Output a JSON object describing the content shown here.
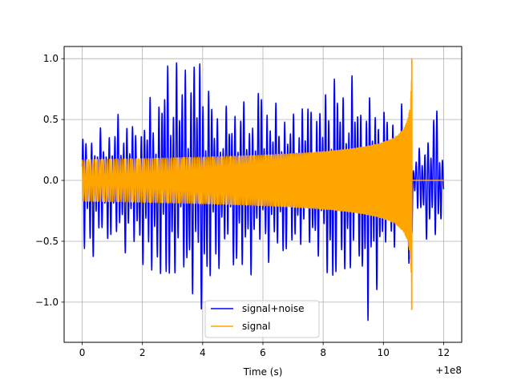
{
  "chart_data": {
    "type": "line",
    "title": "",
    "xlabel": "Time (s)",
    "ylabel": "",
    "x_offset_label": "+1e8",
    "xlim": [
      -0.6,
      12.6
    ],
    "ylim": [
      -1.33,
      1.1
    ],
    "x_ticks": [
      0,
      2,
      4,
      6,
      8,
      10,
      12
    ],
    "x_tick_labels": [
      "0",
      "2",
      "4",
      "6",
      "8",
      "10",
      "12"
    ],
    "y_ticks": [
      -1.0,
      -0.5,
      0.0,
      0.5,
      1.0
    ],
    "y_tick_labels": [
      "−1.0",
      "−0.5",
      "0.0",
      "0.5",
      "1.0"
    ],
    "grid": true,
    "legend_position": "bottom-center",
    "series": [
      {
        "name": "signal+noise",
        "color": "#0000ff",
        "x_start": 0.0,
        "x_end": 12.0,
        "merger_time": 10.95,
        "peak_envelope_y": [
          [
            0.0,
            0.32
          ],
          [
            0.5,
            0.35
          ],
          [
            0.55,
            0.38
          ],
          [
            0.75,
            0.34
          ],
          [
            1.0,
            0.42
          ],
          [
            1.2,
            0.48
          ],
          [
            1.4,
            0.45
          ],
          [
            1.5,
            0.5
          ],
          [
            1.8,
            0.38
          ],
          [
            2.0,
            0.45
          ],
          [
            2.2,
            0.63
          ],
          [
            2.4,
            0.56
          ],
          [
            2.6,
            0.65
          ],
          [
            2.7,
            0.93
          ],
          [
            2.9,
            0.85
          ],
          [
            3.1,
            0.97
          ],
          [
            3.3,
            0.75
          ],
          [
            3.4,
            1.0
          ],
          [
            3.6,
            0.88
          ],
          [
            3.9,
            1.0
          ],
          [
            4.1,
            0.75
          ],
          [
            4.3,
            0.67
          ],
          [
            4.6,
            0.45
          ],
          [
            4.9,
            0.58
          ],
          [
            5.3,
            0.6
          ],
          [
            5.6,
            0.49
          ],
          [
            5.9,
            0.72
          ],
          [
            6.2,
            0.6
          ],
          [
            6.4,
            0.55
          ],
          [
            6.7,
            0.52
          ],
          [
            7.0,
            0.48
          ],
          [
            7.3,
            0.62
          ],
          [
            7.6,
            0.6
          ],
          [
            7.9,
            0.6
          ],
          [
            8.2,
            0.72
          ],
          [
            8.4,
            0.85
          ],
          [
            8.7,
            0.64
          ],
          [
            9.0,
            0.8
          ],
          [
            9.3,
            0.55
          ],
          [
            9.6,
            0.65
          ],
          [
            9.8,
            0.57
          ],
          [
            10.1,
            0.52
          ],
          [
            10.4,
            0.5
          ],
          [
            10.7,
            0.55
          ],
          [
            10.9,
            0.6
          ],
          [
            11.0,
            0.15
          ],
          [
            11.3,
            0.28
          ],
          [
            11.6,
            0.4
          ],
          [
            11.8,
            0.63
          ],
          [
            12.0,
            0.1
          ]
        ],
        "trough_envelope_y": [
          [
            0.0,
            -0.64
          ],
          [
            0.4,
            -0.55
          ],
          [
            0.8,
            -0.45
          ],
          [
            1.2,
            -0.5
          ],
          [
            1.6,
            -0.52
          ],
          [
            2.0,
            -0.6
          ],
          [
            2.2,
            -0.84
          ],
          [
            2.5,
            -0.65
          ],
          [
            2.7,
            -0.99
          ],
          [
            3.0,
            -0.75
          ],
          [
            3.3,
            -0.65
          ],
          [
            3.6,
            -0.9
          ],
          [
            4.0,
            -0.97
          ],
          [
            4.3,
            -0.85
          ],
          [
            4.7,
            -0.55
          ],
          [
            5.0,
            -0.65
          ],
          [
            5.4,
            -0.8
          ],
          [
            5.7,
            -0.6
          ],
          [
            6.0,
            -0.5
          ],
          [
            6.3,
            -0.65
          ],
          [
            6.6,
            -0.55
          ],
          [
            6.9,
            -0.62
          ],
          [
            7.3,
            -0.45
          ],
          [
            7.6,
            -0.55
          ],
          [
            8.0,
            -0.6
          ],
          [
            8.3,
            -0.9
          ],
          [
            8.6,
            -0.7
          ],
          [
            8.9,
            -0.75
          ],
          [
            9.2,
            -0.6
          ],
          [
            9.5,
            -1.22
          ],
          [
            9.8,
            -0.75
          ],
          [
            10.1,
            -0.55
          ],
          [
            10.4,
            -0.48
          ],
          [
            10.7,
            -0.5
          ],
          [
            10.9,
            -0.7
          ],
          [
            11.0,
            -0.2
          ],
          [
            11.3,
            -0.35
          ],
          [
            11.6,
            -0.5
          ],
          [
            11.9,
            -0.45
          ],
          [
            12.0,
            -0.1
          ]
        ]
      },
      {
        "name": "signal",
        "color": "#ffa500",
        "x_start": 0.0,
        "x_end": 12.0,
        "merger_time": 10.95,
        "merger_peak": 1.0,
        "merger_trough": -1.06,
        "early_amplitude": 0.17
      }
    ]
  }
}
